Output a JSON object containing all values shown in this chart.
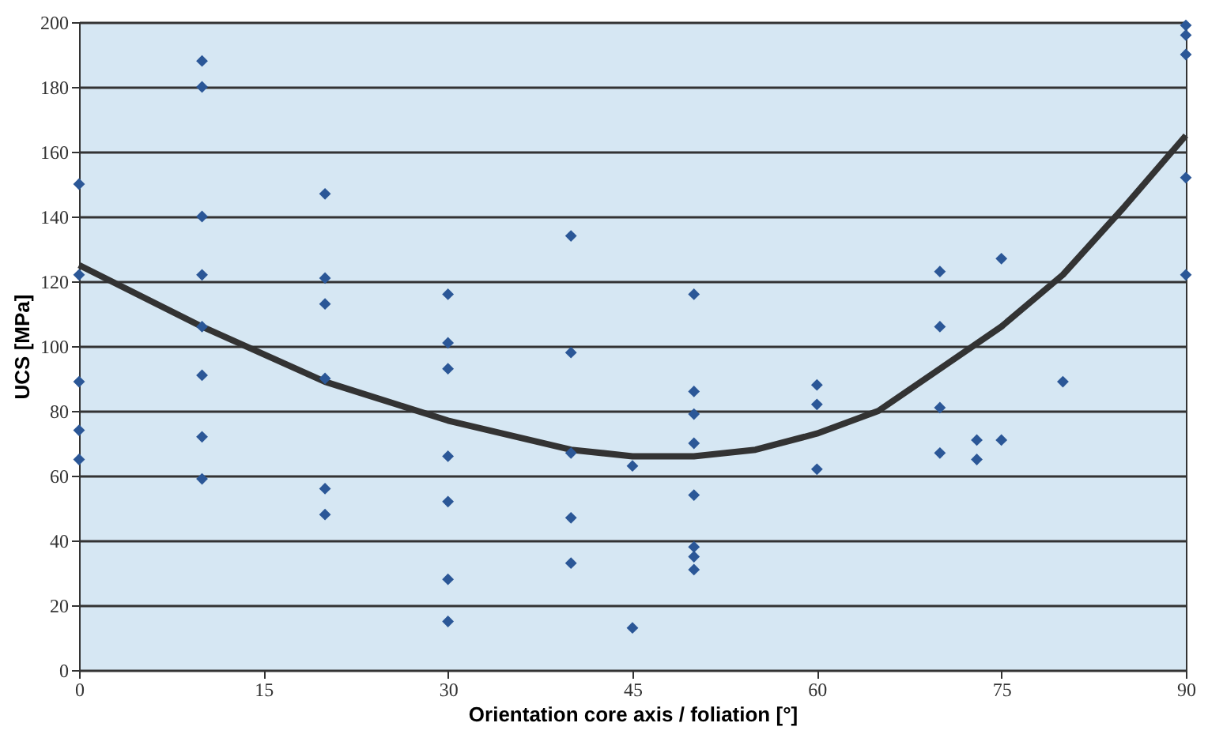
{
  "chart_data": {
    "type": "scatter",
    "xlabel": "Orientation core axis / foliation [°]",
    "ylabel": "UCS [MPa]",
    "xlim": [
      0,
      90
    ],
    "xticks": [
      0,
      15,
      30,
      45,
      60,
      75,
      90
    ],
    "ylim": [
      0,
      200
    ],
    "yticks": [
      0,
      20,
      40,
      60,
      80,
      100,
      120,
      140,
      160,
      180,
      200
    ],
    "grid": "y",
    "legend": false,
    "series": [
      {
        "type": "line",
        "line_style": "solid",
        "marker": "none",
        "color": "#333333",
        "x": [
          0,
          10,
          20,
          30,
          40,
          45,
          50,
          55,
          60,
          65,
          70,
          75,
          80,
          85,
          90
        ],
        "values": [
          125,
          106,
          89,
          77,
          68,
          66,
          66,
          68,
          73,
          80,
          93,
          106,
          122,
          143,
          165
        ]
      },
      {
        "type": "scatter",
        "marker": "diamond",
        "color": "#2b5797",
        "x": [
          0,
          0,
          0,
          0,
          0,
          10,
          10,
          10,
          10,
          10,
          10,
          10,
          10,
          20,
          20,
          20,
          20,
          20,
          20,
          30,
          30,
          30,
          30,
          30,
          30,
          30,
          40,
          40,
          40,
          40,
          40,
          45,
          45,
          50,
          50,
          50,
          50,
          50,
          50,
          50,
          50,
          60,
          60,
          60,
          70,
          70,
          70,
          70,
          73,
          73,
          75,
          75,
          80,
          90,
          90,
          90,
          90,
          90
        ],
        "values": [
          150,
          122,
          89,
          74,
          65,
          188,
          180,
          140,
          122,
          106,
          91,
          72,
          59,
          147,
          121,
          113,
          90,
          56,
          48,
          116,
          101,
          93,
          66,
          52,
          28,
          15,
          134,
          98,
          67,
          47,
          33,
          63,
          13,
          116,
          86,
          79,
          70,
          54,
          38,
          35,
          31,
          88,
          82,
          62,
          123,
          106,
          81,
          67,
          71,
          65,
          127,
          71,
          89,
          199,
          196,
          190,
          152,
          122
        ]
      }
    ]
  }
}
